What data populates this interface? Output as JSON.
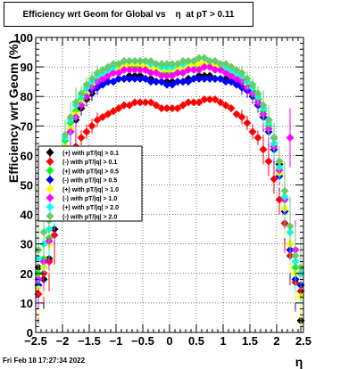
{
  "chart_data": {
    "type": "scatter",
    "title": "Efficiency wrt Geom for Global vs    η  at pT > 0.11",
    "xlabel": "η",
    "ylabel": "Efficiency wrt Geom (%)",
    "xlim": [
      -2.5,
      2.5
    ],
    "ylim": [
      0,
      100
    ],
    "x_ticks": [
      "−2.5",
      "−2",
      "−1.5",
      "−1",
      "−0.5",
      "0",
      "0.5",
      "1",
      "1.5",
      "2",
      "2.5"
    ],
    "y_ticks": [
      "0",
      "10",
      "20",
      "30",
      "40",
      "50",
      "60",
      "70",
      "80",
      "90",
      "100"
    ],
    "grid": true,
    "legend_position": "left-middle",
    "x": [
      -2.45,
      -2.35,
      -2.25,
      -2.15,
      -2.05,
      -1.95,
      -1.85,
      -1.75,
      -1.65,
      -1.55,
      -1.45,
      -1.35,
      -1.25,
      -1.15,
      -1.05,
      -0.95,
      -0.85,
      -0.75,
      -0.65,
      -0.55,
      -0.45,
      -0.35,
      -0.25,
      -0.15,
      -0.05,
      0.05,
      0.15,
      0.25,
      0.35,
      0.45,
      0.55,
      0.65,
      0.75,
      0.85,
      0.95,
      1.05,
      1.15,
      1.25,
      1.35,
      1.45,
      1.55,
      1.65,
      1.75,
      1.85,
      1.95,
      2.05,
      2.15,
      2.25,
      2.35,
      2.45
    ],
    "series": [
      {
        "name": "(+) with pT/|q| > 0.1",
        "color": "#000000",
        "values": [
          22,
          18,
          25,
          35,
          50,
          62,
          68,
          72,
          76,
          79,
          81,
          83,
          84,
          85,
          85,
          86,
          86,
          87,
          87,
          87,
          86,
          86,
          85,
          85,
          85,
          85,
          85,
          85,
          86,
          86,
          87,
          87,
          87,
          86,
          86,
          86,
          85,
          85,
          84,
          83,
          81,
          79,
          76,
          72,
          66,
          57,
          45,
          30,
          20,
          4
        ]
      },
      {
        "name": "(-) with pT/|q| > 0.1",
        "color": "#ff0000",
        "values": [
          13,
          20,
          24,
          33,
          47,
          55,
          60,
          63,
          66,
          68,
          70,
          72,
          73,
          74,
          75,
          76,
          77,
          77,
          78,
          78,
          78,
          78,
          77,
          76,
          76,
          76,
          76,
          77,
          78,
          78,
          78,
          79,
          79,
          79,
          78,
          77,
          76,
          74,
          73,
          71,
          68,
          66,
          62,
          58,
          52,
          45,
          37,
          26,
          17,
          14
        ]
      },
      {
        "name": "(+) with pT/|q| > 0.5",
        "color": "#00ff00",
        "values": [
          20,
          25,
          32,
          42,
          55,
          65,
          71,
          75,
          79,
          82,
          84,
          86,
          87,
          88,
          89,
          89,
          90,
          90,
          90,
          90,
          89,
          89,
          89,
          88,
          88,
          88,
          89,
          89,
          90,
          90,
          91,
          91,
          90,
          90,
          89,
          89,
          88,
          87,
          86,
          84,
          82,
          79,
          75,
          70,
          64,
          55,
          42,
          30,
          22,
          20
        ]
      },
      {
        "name": "(-) with pT/|q| > 0.5",
        "color": "#0000ff",
        "values": [
          16,
          22,
          30,
          40,
          52,
          63,
          69,
          73,
          77,
          80,
          82,
          83,
          84,
          85,
          85,
          86,
          86,
          86,
          86,
          86,
          86,
          85,
          85,
          85,
          84,
          84,
          85,
          85,
          85,
          86,
          86,
          86,
          86,
          86,
          86,
          85,
          85,
          84,
          83,
          82,
          80,
          77,
          73,
          68,
          62,
          53,
          41,
          28,
          18,
          16
        ]
      },
      {
        "name": "(+) with pT/|q| > 1.0",
        "color": "#ffff00",
        "values": [
          15,
          22,
          30,
          41,
          53,
          63,
          69,
          74,
          78,
          81,
          84,
          86,
          87,
          88,
          89,
          90,
          90,
          91,
          91,
          91,
          90,
          90,
          89,
          89,
          89,
          89,
          89,
          90,
          90,
          91,
          91,
          91,
          91,
          90,
          90,
          89,
          88,
          87,
          86,
          84,
          81,
          78,
          74,
          69,
          63,
          54,
          42,
          30,
          20,
          12
        ]
      },
      {
        "name": "(-) with pT/|q| > 1.0",
        "color": "#ff00ff",
        "values": [
          18,
          24,
          31,
          41,
          52,
          62,
          68,
          73,
          77,
          80,
          83,
          85,
          86,
          87,
          88,
          88,
          89,
          89,
          89,
          89,
          89,
          88,
          88,
          87,
          87,
          87,
          88,
          88,
          89,
          89,
          89,
          90,
          90,
          89,
          89,
          88,
          87,
          86,
          85,
          83,
          81,
          78,
          74,
          69,
          63,
          55,
          45,
          66,
          28,
          20
        ]
      },
      {
        "name": "(+) with pT/|q| > 2.0",
        "color": "#00ffff",
        "values": [
          25,
          30,
          35,
          45,
          56,
          66,
          72,
          77,
          80,
          83,
          85,
          87,
          88,
          89,
          90,
          91,
          92,
          92,
          92,
          92,
          92,
          91,
          91,
          90,
          90,
          90,
          91,
          91,
          92,
          92,
          93,
          93,
          92,
          92,
          91,
          90,
          89,
          88,
          87,
          85,
          83,
          80,
          76,
          71,
          64,
          56,
          46,
          34,
          24,
          20
        ]
      },
      {
        "name": "(-) with pT/|q| > 2.0",
        "color": "#66cc66",
        "values": [
          28,
          34,
          38,
          48,
          58,
          67,
          73,
          78,
          81,
          84,
          86,
          88,
          89,
          90,
          91,
          91,
          92,
          92,
          92,
          92,
          92,
          92,
          91,
          91,
          91,
          91,
          91,
          92,
          92,
          92,
          93,
          93,
          92,
          92,
          91,
          91,
          90,
          89,
          88,
          86,
          84,
          81,
          77,
          72,
          66,
          58,
          48,
          36,
          26,
          22
        ]
      }
    ]
  },
  "footer_text": "Fri Feb 18 17:27:34 2022"
}
